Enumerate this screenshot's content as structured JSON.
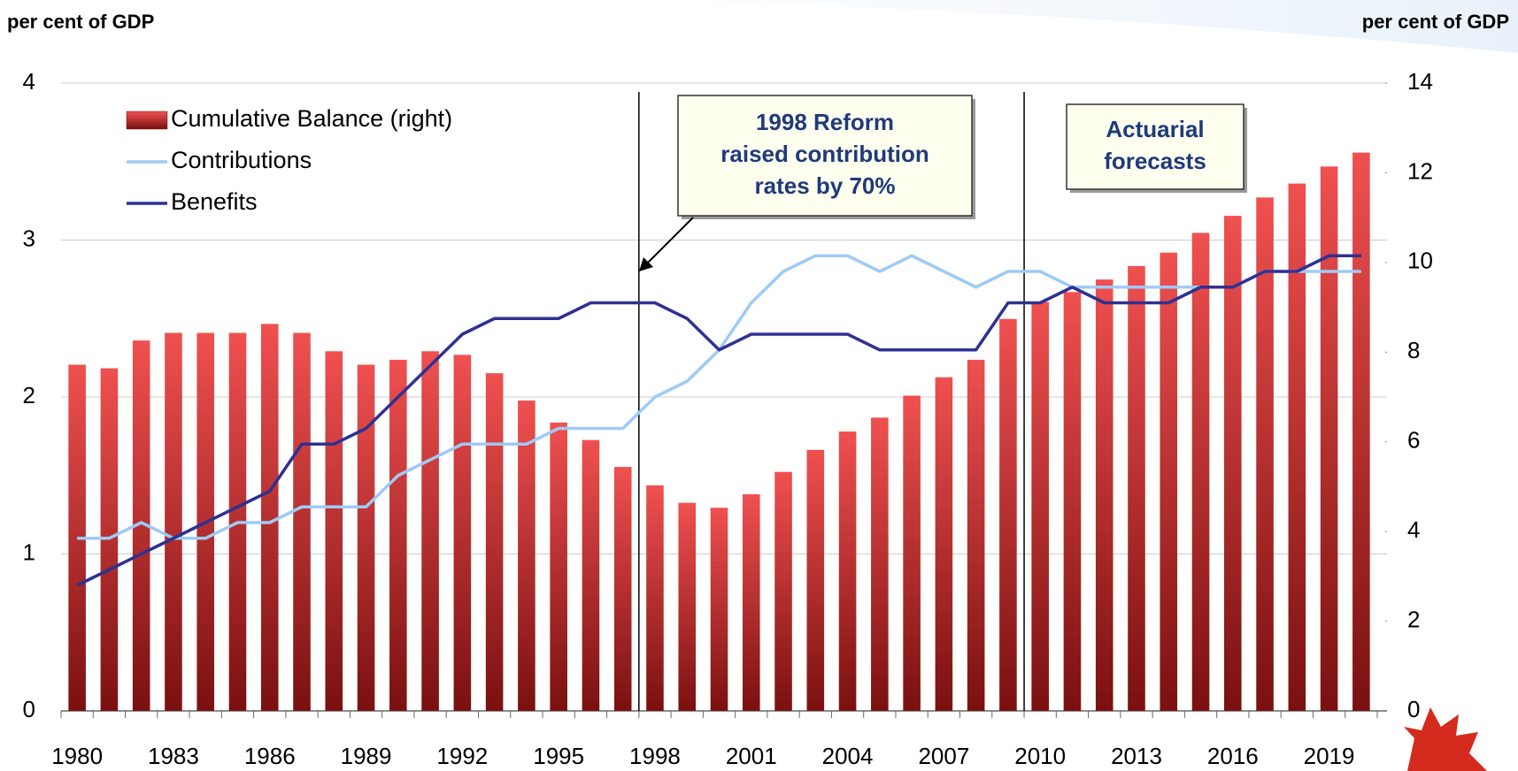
{
  "chart_data": {
    "type": "combo",
    "y_label": "per cent of GDP",
    "y2_label": "per cent of GDP",
    "categories": [
      "1980",
      null,
      null,
      "1983",
      null,
      null,
      "1986",
      null,
      null,
      "1989",
      null,
      null,
      "1992",
      null,
      null,
      "1995",
      null,
      null,
      "1998",
      null,
      null,
      "2001",
      null,
      null,
      "2004",
      null,
      null,
      "2007",
      null,
      null,
      "2010",
      null,
      null,
      "2013",
      null,
      null,
      "2016",
      null,
      null,
      "2019",
      null
    ],
    "series": [
      {
        "name": "Cumulative Balance (right)",
        "type": "bar",
        "axis": "y2",
        "color": "#f05050",
        "values": [
          7.72,
          7.64,
          8.26,
          8.43,
          8.43,
          8.43,
          8.63,
          8.43,
          8.02,
          7.72,
          7.83,
          8.02,
          7.94,
          7.53,
          6.92,
          6.43,
          6.04,
          5.44,
          5.03,
          4.64,
          4.53,
          4.83,
          5.33,
          5.82,
          6.23,
          6.54,
          7.03,
          7.44,
          7.83,
          8.74,
          9.12,
          9.34,
          9.62,
          9.92,
          10.22,
          10.66,
          11.04,
          11.45,
          11.76,
          12.14,
          12.45
        ]
      },
      {
        "name": "Contributions",
        "type": "line",
        "axis": "y",
        "color": "#9ecbf5",
        "values": [
          1.1,
          1.1,
          1.2,
          1.1,
          1.1,
          1.2,
          1.2,
          1.3,
          1.3,
          1.3,
          1.5,
          1.6,
          1.7,
          1.7,
          1.7,
          1.8,
          1.8,
          1.8,
          2.0,
          2.1,
          2.3,
          2.6,
          2.8,
          2.9,
          2.9,
          2.8,
          2.9,
          2.8,
          2.7,
          2.8,
          2.8,
          2.7,
          2.7,
          2.7,
          2.7,
          2.7,
          2.7,
          2.8,
          2.8,
          2.8,
          2.8
        ]
      },
      {
        "name": "Benefits",
        "type": "line",
        "axis": "y",
        "color": "#2e3192",
        "values": [
          0.8,
          0.9,
          1.0,
          1.1,
          1.2,
          1.3,
          1.4,
          1.7,
          1.7,
          1.8,
          2.0,
          2.2,
          2.4,
          2.5,
          2.5,
          2.5,
          2.6,
          2.6,
          2.6,
          2.5,
          2.3,
          2.4,
          2.4,
          2.4,
          2.4,
          2.3,
          2.3,
          2.3,
          2.3,
          2.6,
          2.6,
          2.7,
          2.6,
          2.6,
          2.6,
          2.7,
          2.7,
          2.8,
          2.8,
          2.9,
          2.9
        ]
      }
    ],
    "ylim": [
      0,
      4
    ],
    "yticks": [
      0,
      1,
      2,
      3,
      4
    ],
    "y2lim": [
      0,
      14
    ],
    "y2ticks": [
      0,
      2,
      4,
      6,
      8,
      10,
      12,
      14
    ],
    "grid": true,
    "legend": "top-left",
    "annotations": [
      {
        "lines": [
          "1998 Reform",
          "raised contribution",
          "rates by 70%"
        ]
      },
      {
        "lines": [
          "Actuarial",
          "forecasts"
        ]
      }
    ]
  }
}
